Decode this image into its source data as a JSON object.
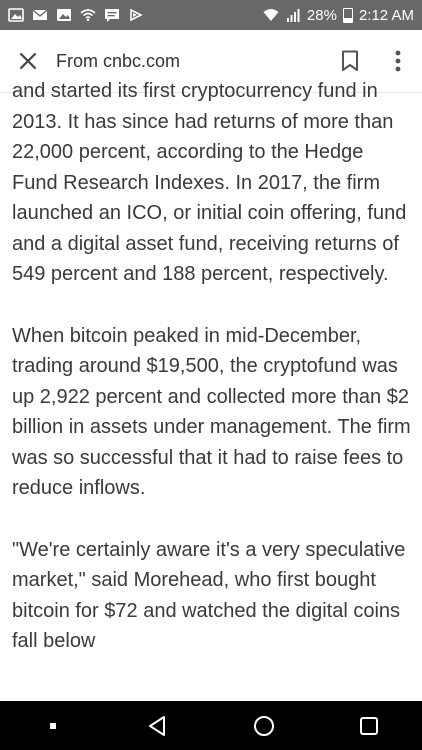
{
  "status_bar": {
    "battery": "28%",
    "time": "2:12 AM",
    "left_icons": [
      "image-icon",
      "mail-icon",
      "gallery-icon",
      "wifi-icon",
      "message-icon",
      "play-icon"
    ]
  },
  "toolbar": {
    "title": "From cnbc.com"
  },
  "article": {
    "paragraphs": [
      "and started its first cryptocurrency fund in 2013. It has since had returns of more than 22,000 percent, according to the Hedge Fund Research Indexes. In 2017, the firm launched an ICO, or initial coin offering, fund and a digital asset fund, receiving returns of 549 percent and 188 percent, respectively.",
      "When bitcoin peaked in mid-December, trading around $19,500, the cryptofund was up 2,922 percent and collected more than $2 billion in assets under management. The firm was so successful that it had to raise fees to reduce inflows.",
      "\"We're certainly aware it's a very speculative market,\" said Morehead, who first bought bitcoin for $72 and watched the digital coins fall below"
    ]
  },
  "colors": {
    "status_bar": "#686868",
    "nav_bar": "#000000",
    "text": "#3a3a3a"
  }
}
